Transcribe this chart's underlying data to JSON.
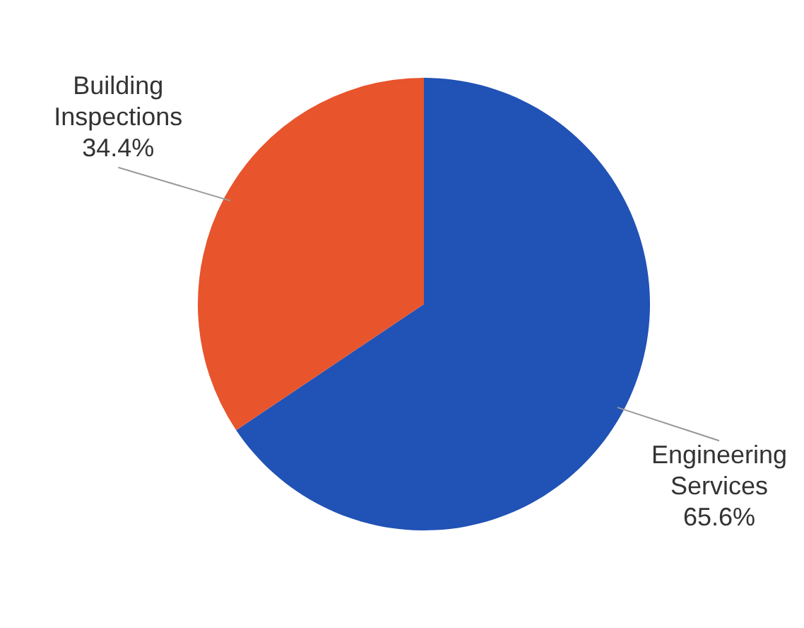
{
  "chart_data": {
    "type": "pie",
    "categories": [
      "Engineering Services",
      "Building Inspections"
    ],
    "values": [
      65.6,
      34.4
    ],
    "colors": [
      "#2152b5",
      "#e8542c"
    ],
    "value_labels": [
      "65.6%",
      "34.4%"
    ]
  }
}
